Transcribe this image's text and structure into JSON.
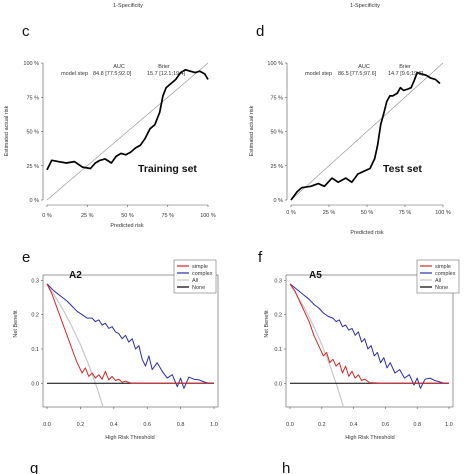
{
  "top_labels": [
    "1-Specificity",
    "1-Specificity"
  ],
  "chart_data": [
    {
      "id": "c",
      "type": "line",
      "panel_label": "c",
      "annotation": "Training set",
      "xlabel": "Predicted risk",
      "ylabel": "Estimated actual risk",
      "xlim": [
        0,
        1
      ],
      "ylim": [
        0,
        1
      ],
      "xticks": [
        "0 %",
        "25 %",
        "50 %",
        "75 %",
        "100 %"
      ],
      "yticks": [
        "0 %",
        "25 %",
        "50 %",
        "75 %",
        "100 %"
      ],
      "stats_header": [
        "AUC",
        "Brier"
      ],
      "stats_row": [
        "model step",
        "84.8 [77.5;92.0]",
        "15.7 [12.1;19.4]"
      ],
      "reference_line": true,
      "series": [
        {
          "color": "#000000",
          "x": [
            0.0,
            0.03,
            0.07,
            0.12,
            0.17,
            0.22,
            0.27,
            0.3,
            0.33,
            0.36,
            0.4,
            0.43,
            0.46,
            0.49,
            0.52,
            0.55,
            0.58,
            0.61,
            0.64,
            0.67,
            0.7,
            0.72,
            0.74,
            0.76,
            0.78,
            0.8,
            0.83,
            0.86,
            0.89,
            0.92,
            0.95,
            0.98,
            1.0
          ],
          "y": [
            0.22,
            0.29,
            0.28,
            0.27,
            0.28,
            0.24,
            0.23,
            0.27,
            0.29,
            0.3,
            0.27,
            0.32,
            0.34,
            0.33,
            0.35,
            0.38,
            0.4,
            0.45,
            0.52,
            0.55,
            0.64,
            0.76,
            0.82,
            0.84,
            0.86,
            0.88,
            0.93,
            0.95,
            0.94,
            0.93,
            0.94,
            0.92,
            0.88
          ]
        }
      ]
    },
    {
      "id": "d",
      "type": "line",
      "panel_label": "d",
      "annotation": "Test set",
      "xlabel": "Predicted risk",
      "ylabel": "Estimated actual risk",
      "xlim": [
        0,
        1
      ],
      "ylim": [
        0,
        1
      ],
      "xticks": [
        "0 %",
        "25 %",
        "50 %",
        "75 %",
        "100 %"
      ],
      "yticks": [
        "0 %",
        "25 %",
        "50 %",
        "75 %",
        "100 %"
      ],
      "stats_header": [
        "AUC",
        "Brier"
      ],
      "stats_row": [
        "model step",
        "86.5 [77.5;97.6]",
        "14.7 [9.6;19.8]"
      ],
      "reference_line": true,
      "series": [
        {
          "color": "#000000",
          "x": [
            0.0,
            0.04,
            0.07,
            0.13,
            0.18,
            0.22,
            0.27,
            0.31,
            0.36,
            0.4,
            0.44,
            0.48,
            0.52,
            0.55,
            0.57,
            0.59,
            0.61,
            0.63,
            0.65,
            0.67,
            0.7,
            0.72,
            0.74,
            0.77,
            0.79,
            0.81,
            0.83,
            0.86,
            0.89,
            0.92,
            0.95,
            0.98
          ],
          "y": [
            0.0,
            0.06,
            0.09,
            0.1,
            0.12,
            0.1,
            0.16,
            0.13,
            0.16,
            0.13,
            0.19,
            0.21,
            0.23,
            0.3,
            0.4,
            0.55,
            0.63,
            0.72,
            0.76,
            0.76,
            0.78,
            0.82,
            0.8,
            0.81,
            0.82,
            0.87,
            0.93,
            0.92,
            0.91,
            0.89,
            0.88,
            0.85
          ]
        }
      ]
    },
    {
      "id": "e",
      "type": "line",
      "panel_label": "e",
      "subtitle": "A2",
      "xlabel": "High Risk Threshold",
      "ylabel": "Net Benefit",
      "xlim": [
        0,
        1
      ],
      "ylim": [
        -0.04,
        0.31
      ],
      "xticks": [
        "0.0",
        "0.2",
        "0.4",
        "0.6",
        "0.8",
        "1.0"
      ],
      "yticks": [
        "0.0",
        "0.1",
        "0.2",
        "0.3"
      ],
      "series": [
        {
          "name": "simple",
          "color": "#d62728",
          "x": [
            0.0,
            0.03,
            0.06,
            0.09,
            0.12,
            0.15,
            0.18,
            0.21,
            0.23,
            0.25,
            0.27,
            0.29,
            0.31,
            0.33,
            0.35,
            0.37,
            0.39,
            0.41,
            0.43,
            0.45,
            0.47,
            0.5,
            0.6,
            0.8,
            1.0
          ],
          "y": [
            0.29,
            0.26,
            0.22,
            0.18,
            0.14,
            0.1,
            0.06,
            0.03,
            0.045,
            0.02,
            0.03,
            0.015,
            0.025,
            0.012,
            0.035,
            0.01,
            0.02,
            0.008,
            0.012,
            0.003,
            0.006,
            0.001,
            0.0,
            0.0,
            0.0
          ]
        },
        {
          "name": "complex",
          "color": "#2c2ca8",
          "x": [
            0.0,
            0.04,
            0.08,
            0.12,
            0.15,
            0.18,
            0.21,
            0.24,
            0.27,
            0.29,
            0.31,
            0.33,
            0.35,
            0.37,
            0.39,
            0.41,
            0.43,
            0.45,
            0.47,
            0.49,
            0.51,
            0.53,
            0.55,
            0.57,
            0.59,
            0.61,
            0.63,
            0.66,
            0.69,
            0.72,
            0.75,
            0.78,
            0.8,
            0.82,
            0.85,
            0.88,
            0.91,
            0.94,
            0.97,
            1.0
          ],
          "y": [
            0.29,
            0.27,
            0.255,
            0.24,
            0.225,
            0.21,
            0.2,
            0.19,
            0.19,
            0.18,
            0.185,
            0.17,
            0.175,
            0.16,
            0.165,
            0.15,
            0.145,
            0.13,
            0.14,
            0.12,
            0.13,
            0.1,
            0.11,
            0.07,
            0.05,
            0.08,
            0.04,
            0.06,
            0.035,
            0.015,
            0.025,
            -0.01,
            0.015,
            -0.015,
            0.018,
            0.012,
            0.01,
            0.004,
            0.0,
            0.0
          ]
        },
        {
          "name": "All",
          "color": "#c8c8c8",
          "x": [
            0.0,
            0.05,
            0.1,
            0.15,
            0.2,
            0.25,
            0.3,
            0.35
          ],
          "y": [
            0.29,
            0.252,
            0.211,
            0.165,
            0.113,
            0.053,
            -0.014,
            -0.09
          ]
        },
        {
          "name": "None",
          "color": "#000000",
          "x": [
            0.0,
            1.0
          ],
          "y": [
            0.0,
            0.0
          ]
        }
      ]
    },
    {
      "id": "f",
      "type": "line",
      "panel_label": "f",
      "subtitle": "A5",
      "xlabel": "High Risk Threshold",
      "ylabel": "Net Benefit",
      "xlim": [
        0,
        1
      ],
      "ylim": [
        -0.04,
        0.31
      ],
      "xticks": [
        "0.0",
        "0.2",
        "0.4",
        "0.6",
        "0.8",
        "1.0"
      ],
      "yticks": [
        "0.0",
        "0.1",
        "0.2",
        "0.3"
      ],
      "series": [
        {
          "name": "simple",
          "color": "#d62728",
          "x": [
            0.0,
            0.03,
            0.06,
            0.09,
            0.12,
            0.15,
            0.18,
            0.21,
            0.23,
            0.25,
            0.27,
            0.29,
            0.31,
            0.33,
            0.35,
            0.37,
            0.39,
            0.41,
            0.43,
            0.45,
            0.47,
            0.5,
            0.6,
            0.8,
            1.0
          ],
          "y": [
            0.29,
            0.27,
            0.24,
            0.21,
            0.18,
            0.14,
            0.11,
            0.08,
            0.09,
            0.06,
            0.07,
            0.05,
            0.06,
            0.03,
            0.05,
            0.02,
            0.035,
            0.015,
            0.025,
            0.008,
            0.012,
            0.002,
            0.0,
            0.0,
            0.0
          ]
        },
        {
          "name": "complex",
          "color": "#2c2ca8",
          "x": [
            0.0,
            0.04,
            0.08,
            0.12,
            0.15,
            0.18,
            0.21,
            0.24,
            0.27,
            0.29,
            0.31,
            0.33,
            0.35,
            0.37,
            0.39,
            0.41,
            0.43,
            0.45,
            0.47,
            0.49,
            0.51,
            0.53,
            0.55,
            0.57,
            0.59,
            0.61,
            0.63,
            0.66,
            0.69,
            0.72,
            0.75,
            0.78,
            0.8,
            0.82,
            0.85,
            0.88,
            0.91,
            0.94,
            0.97,
            1.0
          ],
          "y": [
            0.29,
            0.275,
            0.26,
            0.245,
            0.23,
            0.22,
            0.205,
            0.195,
            0.19,
            0.18,
            0.185,
            0.165,
            0.17,
            0.155,
            0.16,
            0.14,
            0.15,
            0.12,
            0.13,
            0.1,
            0.11,
            0.08,
            0.09,
            0.06,
            0.075,
            0.045,
            0.06,
            0.03,
            0.04,
            0.015,
            0.025,
            -0.005,
            0.015,
            -0.015,
            0.012,
            0.015,
            0.008,
            0.004,
            0.0,
            0.0
          ]
        },
        {
          "name": "All",
          "color": "#c8c8c8",
          "x": [
            0.0,
            0.05,
            0.1,
            0.15,
            0.2,
            0.25,
            0.3,
            0.35
          ],
          "y": [
            0.29,
            0.252,
            0.211,
            0.165,
            0.113,
            0.053,
            -0.014,
            -0.09
          ]
        },
        {
          "name": "None",
          "color": "#000000",
          "x": [
            0.0,
            1.0
          ],
          "y": [
            0.0,
            0.0
          ]
        }
      ]
    }
  ],
  "bottom_labels": [
    "g",
    "h"
  ]
}
